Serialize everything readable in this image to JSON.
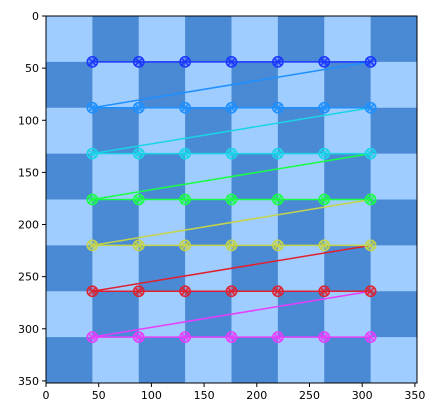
{
  "chart_data": {
    "type": "scatter",
    "title": "",
    "xlabel": "",
    "ylabel": "",
    "image_extent": [
      0,
      352
    ],
    "xlim": [
      0,
      352
    ],
    "ylim": [
      352,
      0
    ],
    "y_inverted": true,
    "grid": false,
    "legend": "none",
    "background_image": {
      "description_type": "checkerboard",
      "cell_size": 44,
      "cells_per_side": 8,
      "colors": {
        "dark": "#4a8ad4",
        "light": "#a0cdff"
      }
    },
    "x_ticks": [
      0,
      50,
      100,
      150,
      200,
      250,
      300,
      350
    ],
    "y_ticks": [
      0,
      50,
      100,
      150,
      200,
      250,
      300,
      350
    ],
    "x_tick_labels": [
      "0",
      "50",
      "100",
      "150",
      "200",
      "250",
      "300",
      "350"
    ],
    "y_tick_labels": [
      "0",
      "50",
      "100",
      "150",
      "200",
      "250",
      "300",
      "350"
    ],
    "path": {
      "description_type": "zigzag",
      "points_x": [
        44,
        88,
        132,
        176,
        220,
        264,
        308
      ],
      "rows_y": [
        44,
        88,
        132,
        176,
        220,
        264,
        308
      ],
      "row_colors": [
        "#1a35ff",
        "#1e8fff",
        "#1ad4e8",
        "#1aff45",
        "#c4d44a",
        "#e0202e",
        "#e83cff"
      ],
      "connector_colors": [
        "#1e8fff",
        "#1ad4e8",
        "#1aff45",
        "#c4d44a",
        "#e0202e",
        "#e83cff"
      ],
      "marker": "circle-x"
    }
  }
}
